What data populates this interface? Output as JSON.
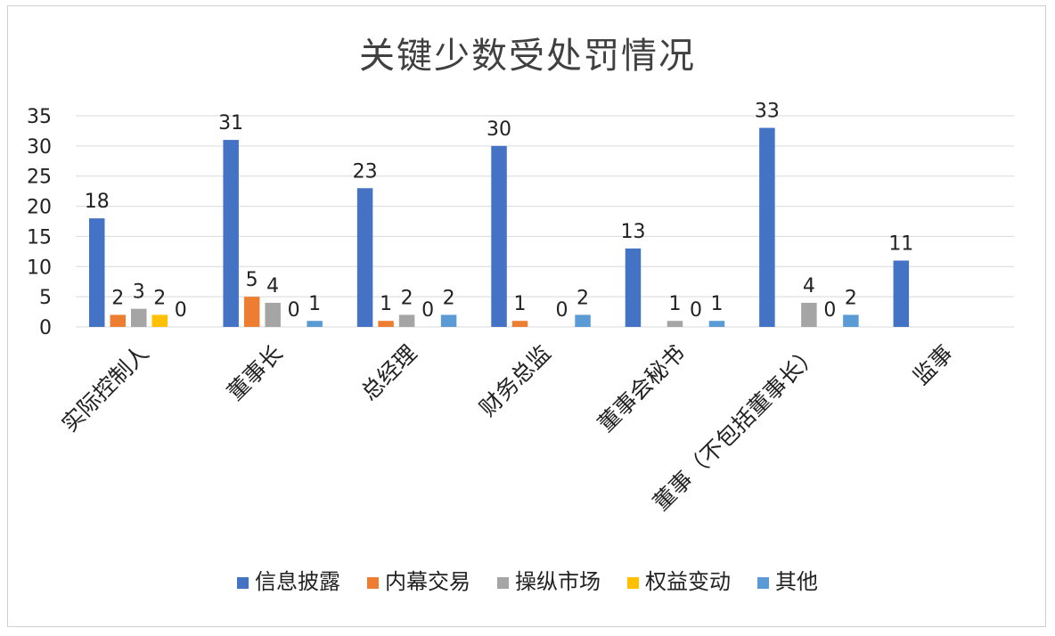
{
  "chart_data": {
    "type": "bar",
    "title": "关键少数受处罚情况",
    "categories": [
      "实际控制人",
      "董事长",
      "总经理",
      "财务总监",
      "董事会秘书",
      "董事（不包括董事长）",
      "监事"
    ],
    "series": [
      {
        "name": "信息披露",
        "color": "#4472C4",
        "values": [
          18,
          31,
          23,
          30,
          13,
          33,
          11
        ]
      },
      {
        "name": "内幕交易",
        "color": "#ED7D31",
        "values": [
          2,
          5,
          1,
          1,
          null,
          null,
          null
        ]
      },
      {
        "name": "操纵市场",
        "color": "#A5A5A5",
        "values": [
          3,
          4,
          2,
          null,
          1,
          4,
          null
        ]
      },
      {
        "name": "权益变动",
        "color": "#FFC000",
        "values": [
          2,
          0,
          0,
          0,
          0,
          0,
          null
        ]
      },
      {
        "name": "其他",
        "color": "#5B9BD5",
        "values": [
          0,
          1,
          2,
          2,
          1,
          2,
          null
        ]
      }
    ],
    "ylim": [
      0,
      35
    ],
    "yticks": [
      0,
      5,
      10,
      15,
      20,
      25,
      30,
      35
    ],
    "grid": true,
    "legend": "bottom",
    "xlabel": "",
    "ylabel": ""
  }
}
